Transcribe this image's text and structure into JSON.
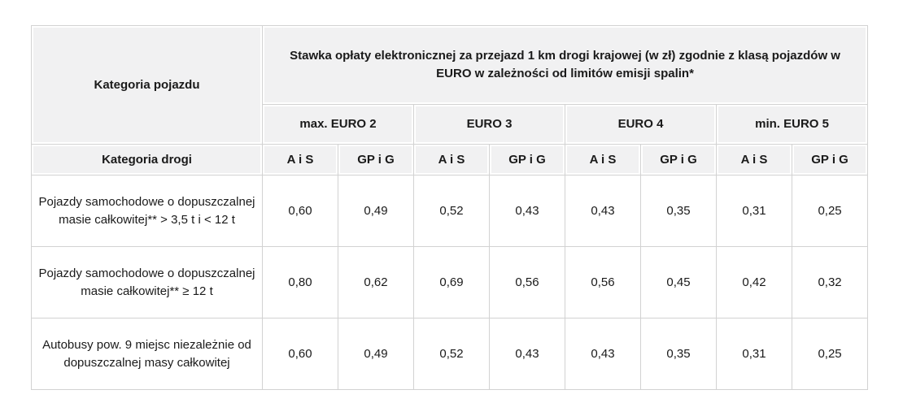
{
  "table": {
    "vehicle_category_header": "Kategoria pojazdu",
    "rate_title": "Stawka opłaty elektronicznej za przejazd 1 km drogi krajowej (w zł) zgodnie z klasą pojazdów w EURO w zależności od limitów emisji spalin*",
    "euro_classes": [
      "max. EURO 2",
      "EURO 3",
      "EURO 4",
      "min. EURO 5"
    ],
    "road_category_header": "Kategoria drogi",
    "road_types": [
      "A i S",
      "GP i G",
      "A i S",
      "GP i G",
      "A i S",
      "GP i G",
      "A i S",
      "GP i G"
    ],
    "rows": [
      {
        "label": "Pojazdy samochodowe o dopuszczalnej masie całkowitej** > 3,5 t i < 12 t",
        "values": [
          "0,60",
          "0,49",
          "0,52",
          "0,43",
          "0,43",
          "0,35",
          "0,31",
          "0,25"
        ]
      },
      {
        "label": "Pojazdy samochodowe o dopuszczalnej masie całkowitej** ≥ 12 t",
        "values": [
          "0,80",
          "0,62",
          "0,69",
          "0,56",
          "0,56",
          "0,45",
          "0,42",
          "0,32"
        ]
      },
      {
        "label": "Autobusy pow. 9 miejsc niezależnie od dopuszczalnej masy całkowitej",
        "values": [
          "0,60",
          "0,49",
          "0,52",
          "0,43",
          "0,43",
          "0,35",
          "0,31",
          "0,25"
        ]
      }
    ]
  }
}
